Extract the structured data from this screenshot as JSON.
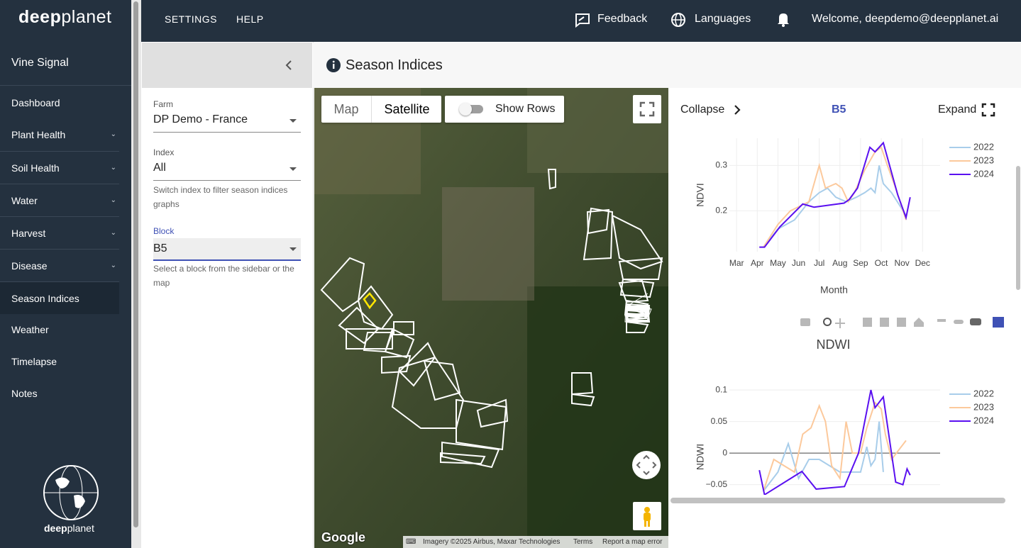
{
  "header": {
    "logo_bold": "deep",
    "logo_light": "planet",
    "settings": "SETTINGS",
    "help": "HELP",
    "feedback": "Feedback",
    "languages": "Languages",
    "welcome": "Welcome, deepdemo@deepplanet.ai"
  },
  "sidebar": {
    "app": "Vine Signal",
    "items": [
      "Dashboard",
      "Plant Health",
      "Soil Health",
      "Water",
      "Harvest",
      "Disease",
      "Season Indices",
      "Weather",
      "Timelapse",
      "Notes"
    ],
    "footer_bold": "deep",
    "footer_light": "planet"
  },
  "filters": {
    "farm_label": "Farm",
    "farm_value": "DP Demo - France",
    "index_label": "Index",
    "index_value": "All",
    "index_help": "Switch index to filter season indices graphs",
    "block_label": "Block",
    "block_value": "B5",
    "block_help": "Select a block from the sidebar or the map"
  },
  "page": {
    "title": "Season Indices"
  },
  "map": {
    "tab_map": "Map",
    "tab_satellite": "Satellite",
    "show_rows": "Show Rows",
    "google": "Google",
    "imagery": "Imagery ©2025 Airbus, Maxar Technologies",
    "terms": "Terms",
    "report": "Report a map error"
  },
  "panel": {
    "collapse": "Collapse",
    "block": "B5",
    "expand": "Expand"
  },
  "chart_data": [
    {
      "type": "line",
      "y_label": "NDVI",
      "x_label": "Month",
      "xlim": [
        2.65,
        12.85
      ],
      "ylim": [
        0.11,
        0.36
      ],
      "xticks": [
        {
          "value": 3,
          "label": "Mar"
        },
        {
          "value": 4,
          "label": "Apr"
        },
        {
          "value": 5,
          "label": "May"
        },
        {
          "value": 6,
          "label": "Jun"
        },
        {
          "value": 7,
          "label": "Jul"
        },
        {
          "value": 8,
          "label": "Aug"
        },
        {
          "value": 9,
          "label": "Sep"
        },
        {
          "value": 10,
          "label": "Oct"
        },
        {
          "value": 11,
          "label": "Nov"
        },
        {
          "value": 12,
          "label": "Dec"
        }
      ],
      "yticks": [
        0.2,
        0.3
      ],
      "grid": true,
      "zeroline": false,
      "series": [
        {
          "name": "2022",
          "color": "#a8cdea",
          "x": [
            4.3,
            5.0,
            5.8,
            6.5,
            7.0,
            7.4,
            7.8,
            8.3,
            8.8,
            9.2,
            9.5,
            9.7,
            9.9,
            10.1,
            10.5,
            11.2
          ],
          "values": [
            0.12,
            0.16,
            0.18,
            0.22,
            0.24,
            0.25,
            0.23,
            0.22,
            0.23,
            0.24,
            0.25,
            0.24,
            0.3,
            0.26,
            0.24,
            0.19
          ]
        },
        {
          "name": "2023",
          "color": "#fcc99c",
          "x": [
            4.3,
            5.0,
            5.6,
            6.5,
            7.0,
            7.3,
            7.8,
            8.1,
            8.4,
            8.7,
            9.2,
            9.7,
            10.0,
            10.3,
            10.7,
            11.2
          ],
          "values": [
            0.12,
            0.17,
            0.2,
            0.22,
            0.3,
            0.25,
            0.26,
            0.25,
            0.22,
            0.24,
            0.29,
            0.33,
            0.34,
            0.3,
            0.25,
            0.18
          ]
        },
        {
          "name": "2024",
          "color": "#5a10f0",
          "x": [
            4.1,
            4.35,
            5.1,
            6.2,
            6.75,
            8.2,
            8.45,
            8.85,
            9.45,
            9.7,
            10.1,
            10.8,
            11.2,
            11.4
          ],
          "values": [
            0.12,
            0.12,
            0.165,
            0.215,
            0.208,
            0.217,
            0.225,
            0.25,
            0.34,
            0.33,
            0.35,
            0.235,
            0.185,
            0.23
          ]
        }
      ]
    },
    {
      "type": "line",
      "title": "NDWI",
      "y_label": "NDWI",
      "xlim": [
        2.65,
        12.85
      ],
      "ylim": [
        -0.12,
        0.108
      ],
      "yticks": [
        0.1,
        0.05,
        0,
        {
          "value": -0.05,
          "label": "−0.05"
        }
      ],
      "grid": true,
      "zeroline": true,
      "series": [
        {
          "name": "2022",
          "color": "#a8cdea",
          "x": [
            4.3,
            5.0,
            5.5,
            6.0,
            6.5,
            7.0,
            7.5,
            8.0,
            8.5,
            9.0,
            9.3,
            9.5,
            9.7,
            9.9,
            10.1
          ],
          "values": [
            -0.06,
            -0.03,
            0.015,
            -0.04,
            -0.01,
            -0.01,
            -0.02,
            -0.03,
            -0.03,
            -0.03,
            0.01,
            -0.02,
            -0.01,
            0.05,
            -0.03
          ]
        },
        {
          "name": "2023",
          "color": "#fcc99c",
          "x": [
            4.3,
            4.8,
            5.3,
            5.8,
            6.2,
            6.6,
            7.0,
            7.3,
            7.6,
            8.0,
            8.3,
            8.6,
            9.0,
            9.3,
            9.7,
            10.0,
            10.2,
            10.5,
            11.2
          ],
          "values": [
            -0.06,
            -0.01,
            -0.02,
            -0.03,
            0.03,
            0.04,
            0.075,
            0.05,
            -0.02,
            -0.04,
            0.05,
            0.0,
            0.0,
            0.04,
            0.08,
            0.07,
            0.03,
            -0.01,
            0.02
          ]
        },
        {
          "name": "2024",
          "color": "#5a10f0",
          "x": [
            4.1,
            4.35,
            6.16,
            6.85,
            8.22,
            8.9,
            9.5,
            9.7,
            10.1,
            10.7,
            11.05,
            11.25,
            11.4
          ],
          "values": [
            -0.027,
            -0.066,
            -0.029,
            -0.057,
            -0.053,
            0,
            0.1,
            0.072,
            0.089,
            -0.046,
            -0.05,
            -0.025,
            -0.035
          ]
        }
      ]
    }
  ]
}
